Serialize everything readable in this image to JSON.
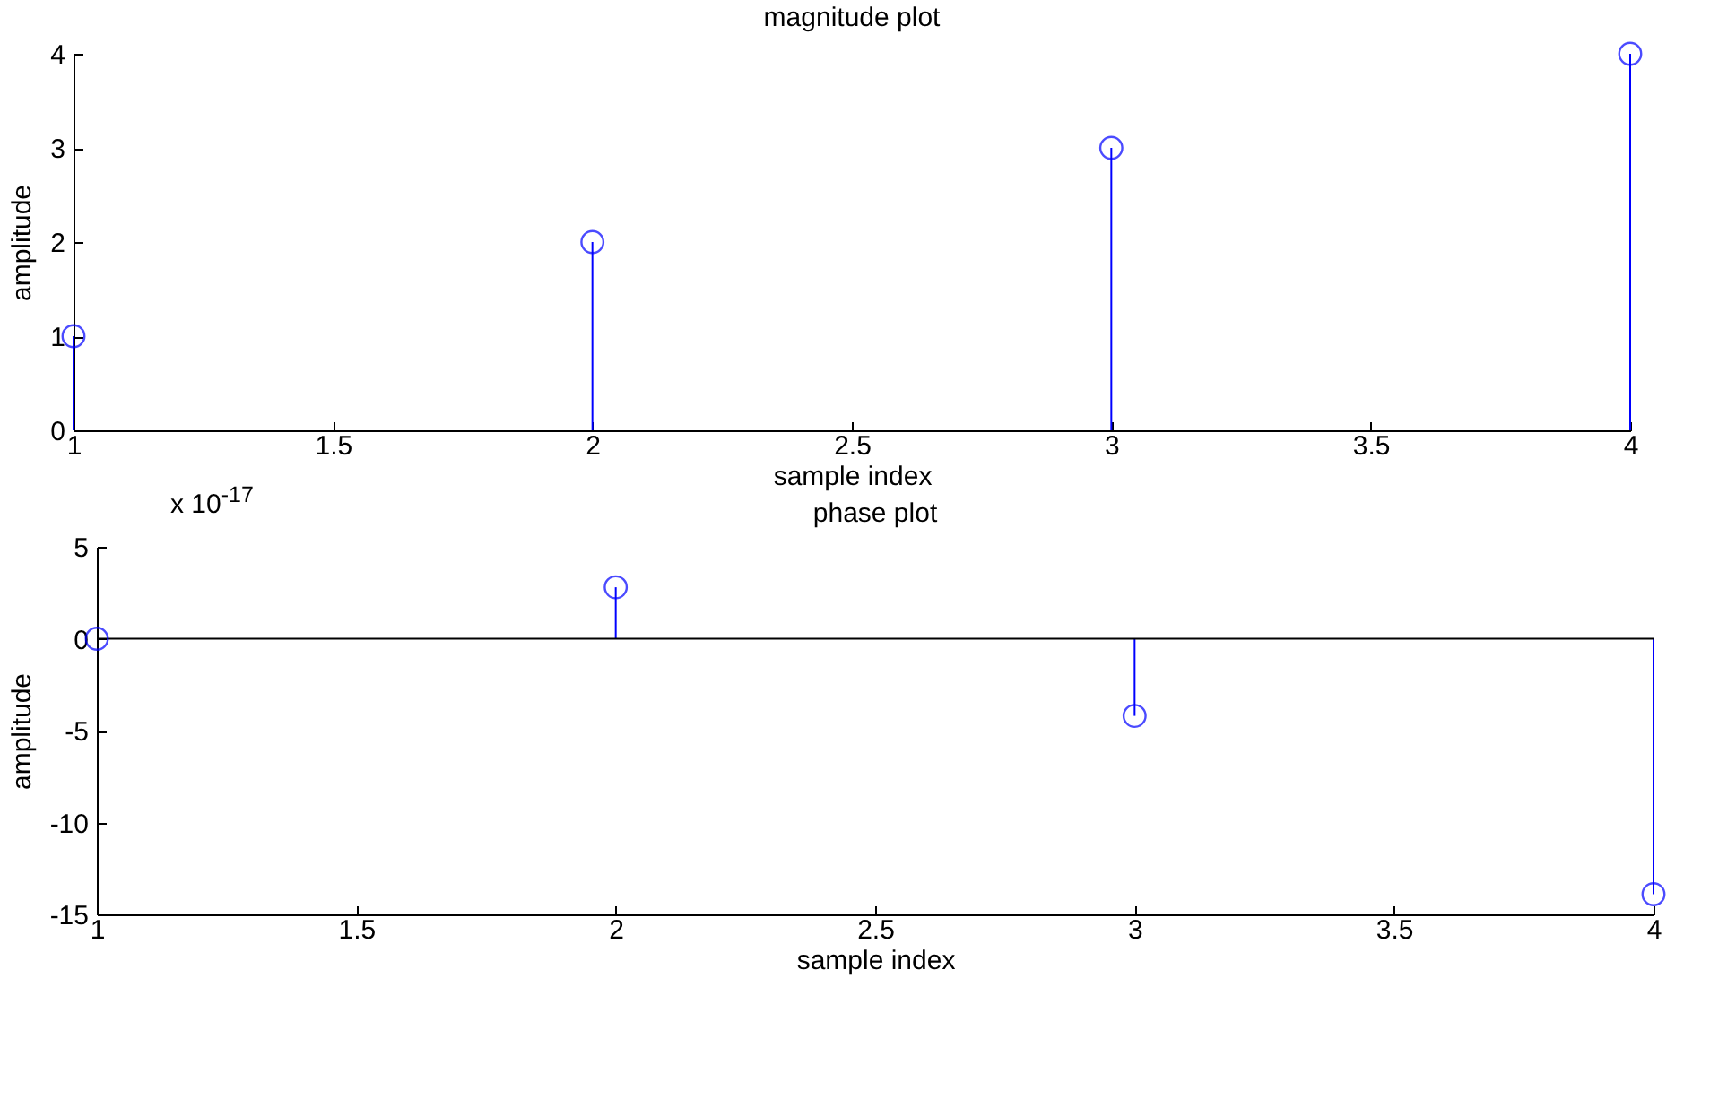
{
  "chart_data": [
    {
      "type": "lollipop",
      "title": "magnitude plot",
      "xlabel": "sample index",
      "ylabel": "amplitude",
      "x": [
        1,
        2,
        3,
        4
      ],
      "values": [
        1,
        2,
        3,
        4
      ],
      "color": "#0000ff",
      "marker": "circle",
      "xlim": [
        1,
        4
      ],
      "xticks": [
        1,
        1.5,
        2,
        2.5,
        3,
        3.5,
        4
      ],
      "ylim": [
        0,
        4
      ],
      "yticks": [
        0,
        1,
        2,
        3,
        4
      ]
    },
    {
      "type": "lollipop",
      "title": "phase plot",
      "xlabel": "sample index",
      "ylabel": "amplitude",
      "x": [
        1,
        2,
        3,
        4
      ],
      "values": [
        0,
        2.8,
        -4.2,
        -13.9
      ],
      "color": "#0000ff",
      "marker": "circle",
      "xlim": [
        1,
        4
      ],
      "xticks": [
        1,
        1.5,
        2,
        2.5,
        3,
        3.5,
        4
      ],
      "ylim": [
        -15,
        5
      ],
      "yticks": [
        -15,
        -10,
        -5,
        0,
        5
      ],
      "annotations": [
        "x 10$^{-17}$"
      ],
      "ref_lines": [
        {
          "axis": "y",
          "value": 0,
          "color": "#000000"
        }
      ]
    }
  ]
}
